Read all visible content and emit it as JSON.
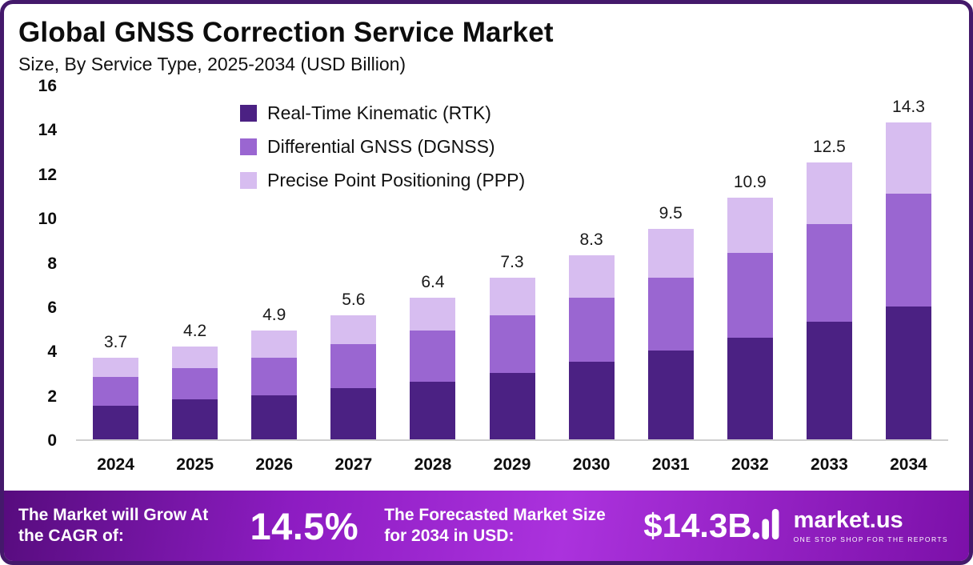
{
  "header": {
    "title": "Global GNSS Correction Service Market",
    "subtitle": "Size, By Service Type, 2025-2034 (USD Billion)"
  },
  "chart_data": {
    "type": "bar",
    "stacked": true,
    "title": "Global GNSS Correction Service Market",
    "subtitle": "Size, By Service Type, 2025-2034 (USD Billion)",
    "xlabel": "",
    "ylabel": "",
    "ylim": [
      0,
      16
    ],
    "yticks": [
      0,
      2,
      4,
      6,
      8,
      10,
      12,
      14,
      16
    ],
    "grid": false,
    "legend_position": "top-left",
    "categories": [
      "2024",
      "2025",
      "2026",
      "2027",
      "2028",
      "2029",
      "2030",
      "2031",
      "2032",
      "2033",
      "2034"
    ],
    "totals": [
      3.7,
      4.2,
      4.9,
      5.6,
      6.4,
      7.3,
      8.3,
      9.5,
      10.9,
      12.5,
      14.3
    ],
    "series": [
      {
        "name": "Real-Time Kinematic (RTK)",
        "color": "#4b2183",
        "values": [
          1.5,
          1.8,
          2.0,
          2.3,
          2.6,
          3.0,
          3.5,
          4.0,
          4.6,
          5.3,
          6.0
        ]
      },
      {
        "name": "Differential GNSS (DGNSS)",
        "color": "#9a66d1",
        "values": [
          1.3,
          1.4,
          1.7,
          2.0,
          2.3,
          2.6,
          2.9,
          3.3,
          3.8,
          4.4,
          5.1
        ]
      },
      {
        "name": "Precise Point Positioning (PPP)",
        "color": "#d7bdf0",
        "values": [
          0.9,
          1.0,
          1.2,
          1.3,
          1.5,
          1.7,
          1.9,
          2.2,
          2.5,
          2.8,
          3.2
        ]
      }
    ]
  },
  "footer": {
    "cagr_label": "The Market will Grow At the CAGR of:",
    "cagr_value": "14.5%",
    "forecast_label": "The Forecasted Market Size for 2034 in USD:",
    "forecast_value": "$14.3B",
    "brand": "market.us",
    "brand_tagline": "ONE STOP SHOP FOR THE REPORTS"
  }
}
